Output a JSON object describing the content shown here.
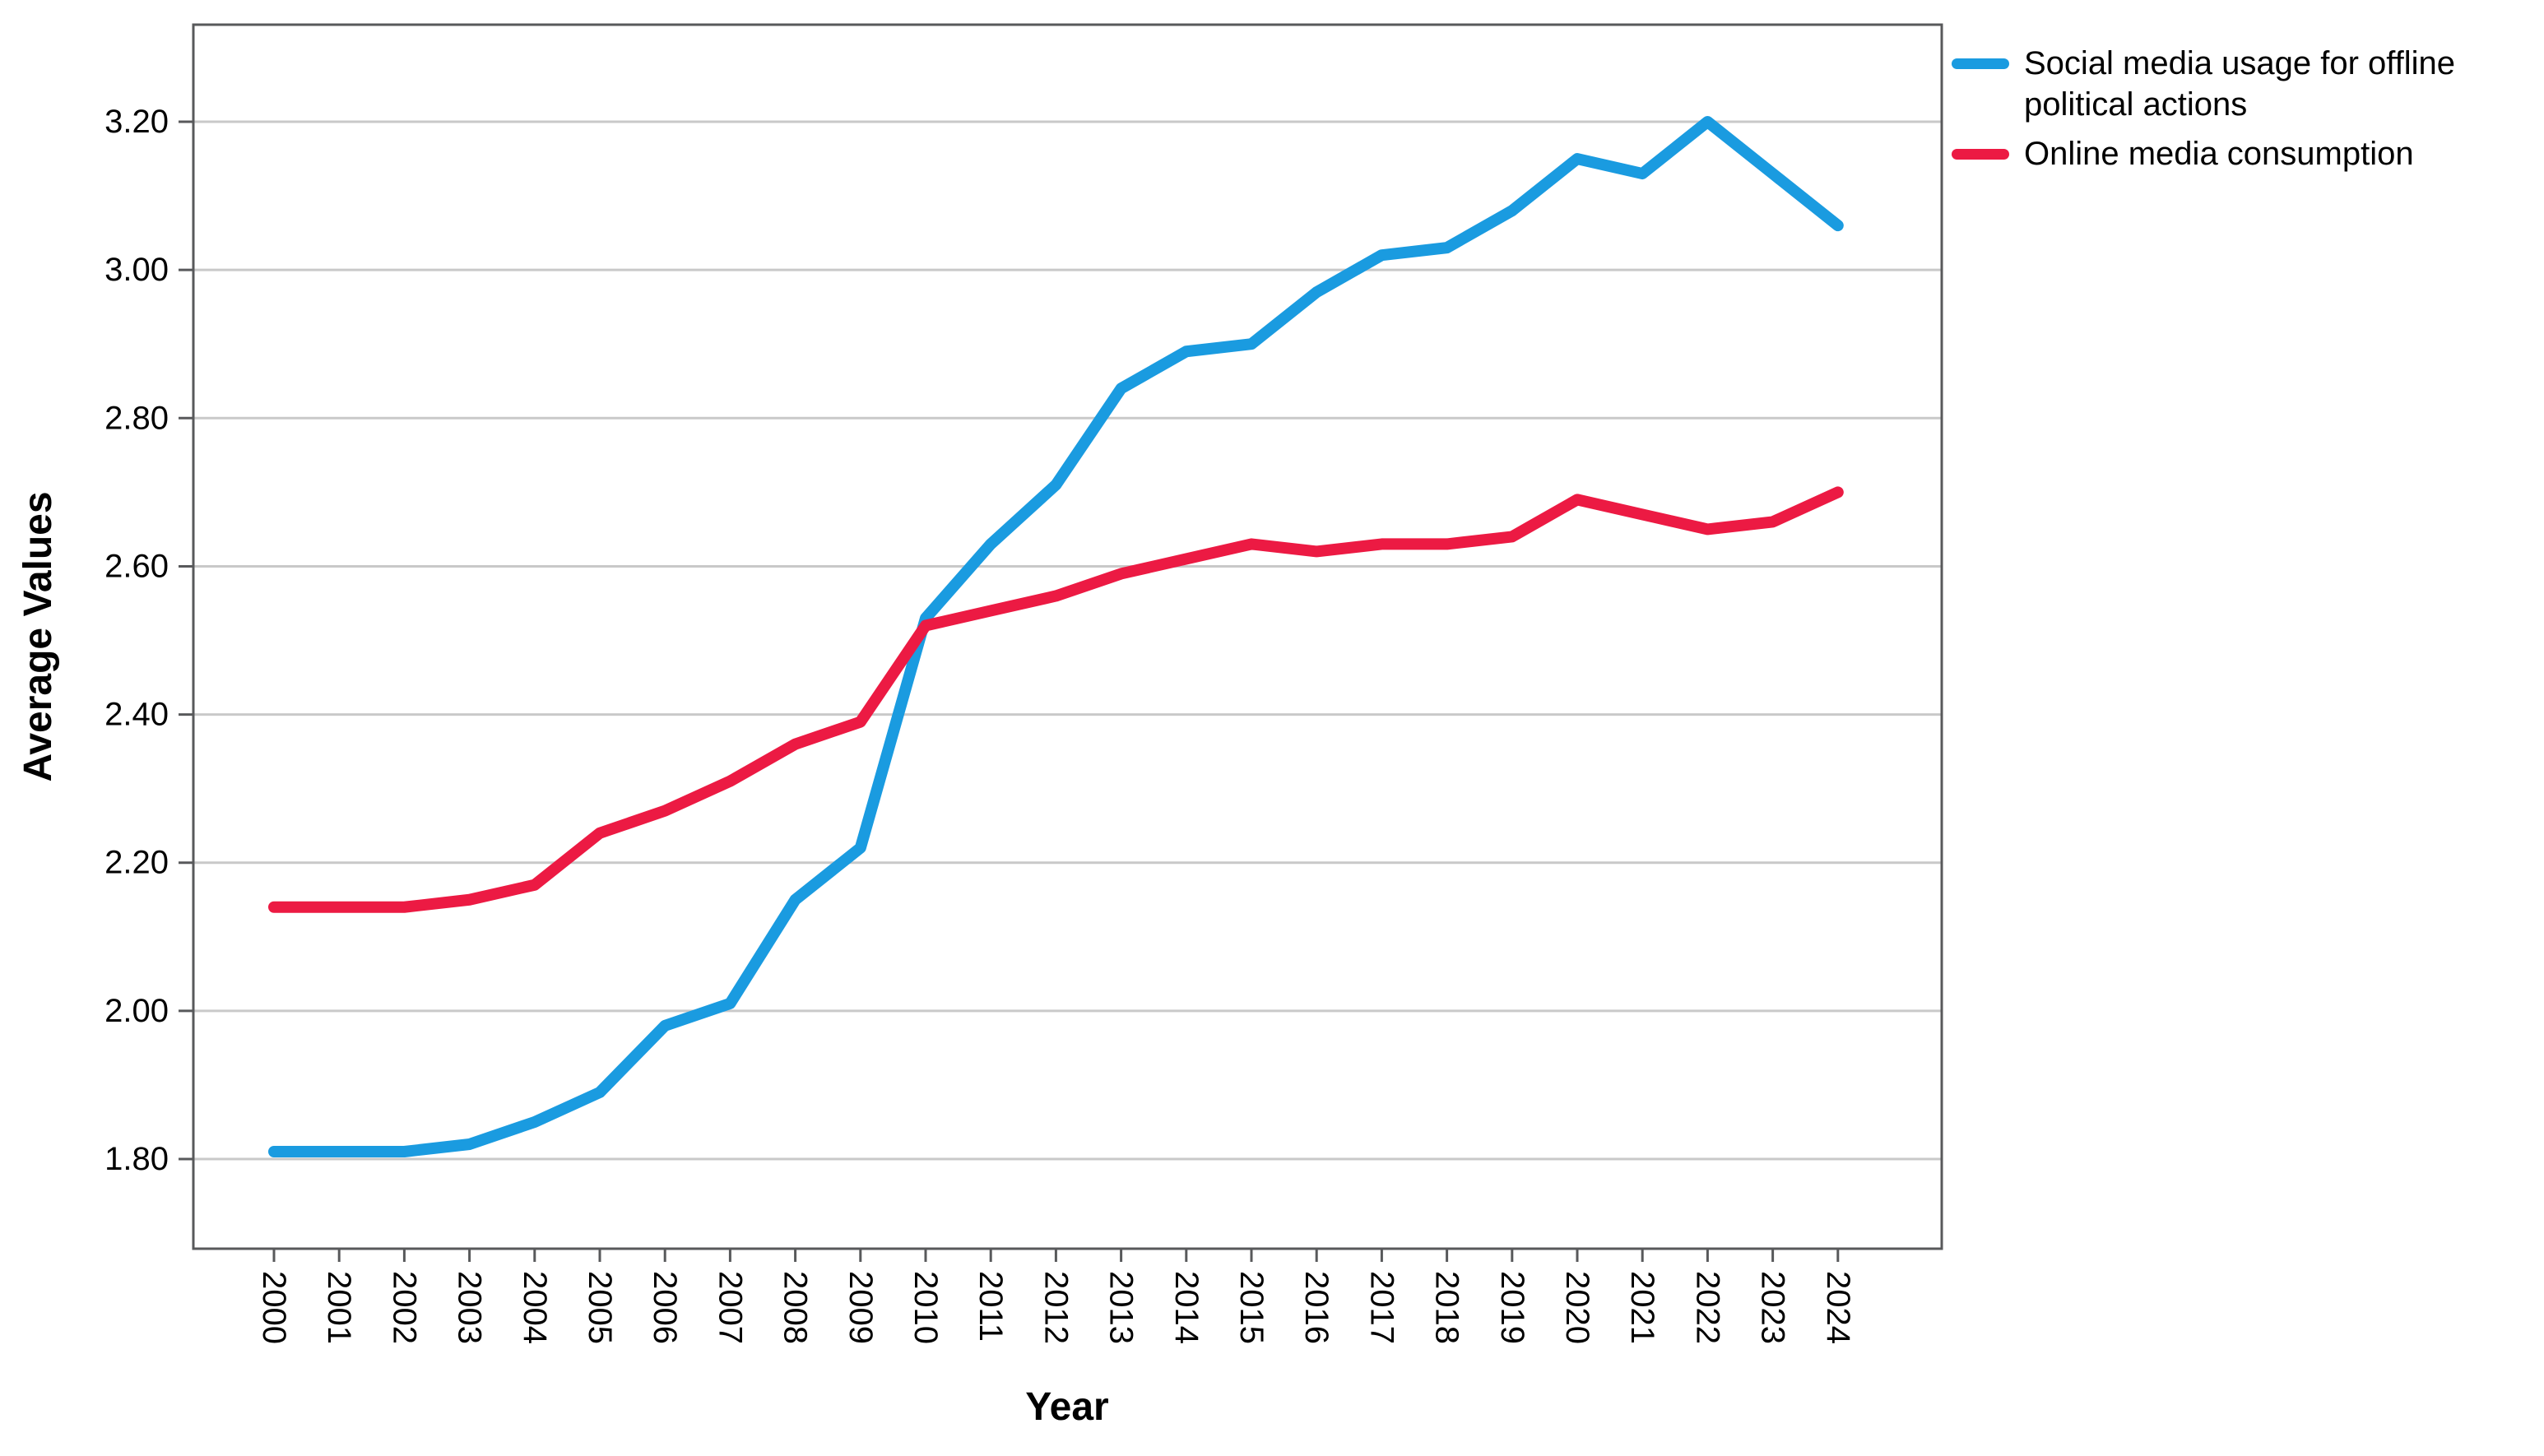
{
  "chart_data": {
    "type": "line",
    "title": "",
    "xlabel": "Year",
    "ylabel": "Average Values",
    "categories": [
      "2000",
      "2001",
      "2002",
      "2003",
      "2004",
      "2005",
      "2006",
      "2007",
      "2008",
      "2009",
      "2010",
      "2011",
      "2012",
      "2013",
      "2014",
      "2015",
      "2016",
      "2017",
      "2018",
      "2019",
      "2020",
      "2021",
      "2022",
      "2023",
      "2024"
    ],
    "series": [
      {
        "name": "Social media usage for offline political actions",
        "color": "#1A9BE0",
        "values": [
          1.81,
          1.81,
          1.81,
          1.82,
          1.85,
          1.89,
          1.98,
          2.01,
          2.15,
          2.22,
          2.53,
          2.63,
          2.71,
          2.84,
          2.89,
          2.9,
          2.97,
          3.02,
          3.03,
          3.08,
          3.15,
          3.13,
          3.2,
          3.13,
          3.06
        ]
      },
      {
        "name": "Online media consumption",
        "color": "#EC1A43",
        "values": [
          2.14,
          2.14,
          2.14,
          2.15,
          2.17,
          2.24,
          2.27,
          2.31,
          2.36,
          2.39,
          2.52,
          2.54,
          2.56,
          2.59,
          2.61,
          2.63,
          2.62,
          2.63,
          2.63,
          2.64,
          2.69,
          2.67,
          2.65,
          2.66,
          2.7
        ]
      }
    ],
    "y_ticks": [
      "1.80",
      "2.00",
      "2.20",
      "2.40",
      "2.60",
      "2.80",
      "3.00",
      "3.20"
    ],
    "ylim": [
      1.68,
      3.33
    ],
    "x_tick_rotation": 90,
    "grid": "horizontal",
    "legend_position": "top-right",
    "colors": {
      "gridline": "#C9C9C9",
      "frame": "#58595B",
      "text": "#000000",
      "background": "#FFFFFF"
    }
  }
}
